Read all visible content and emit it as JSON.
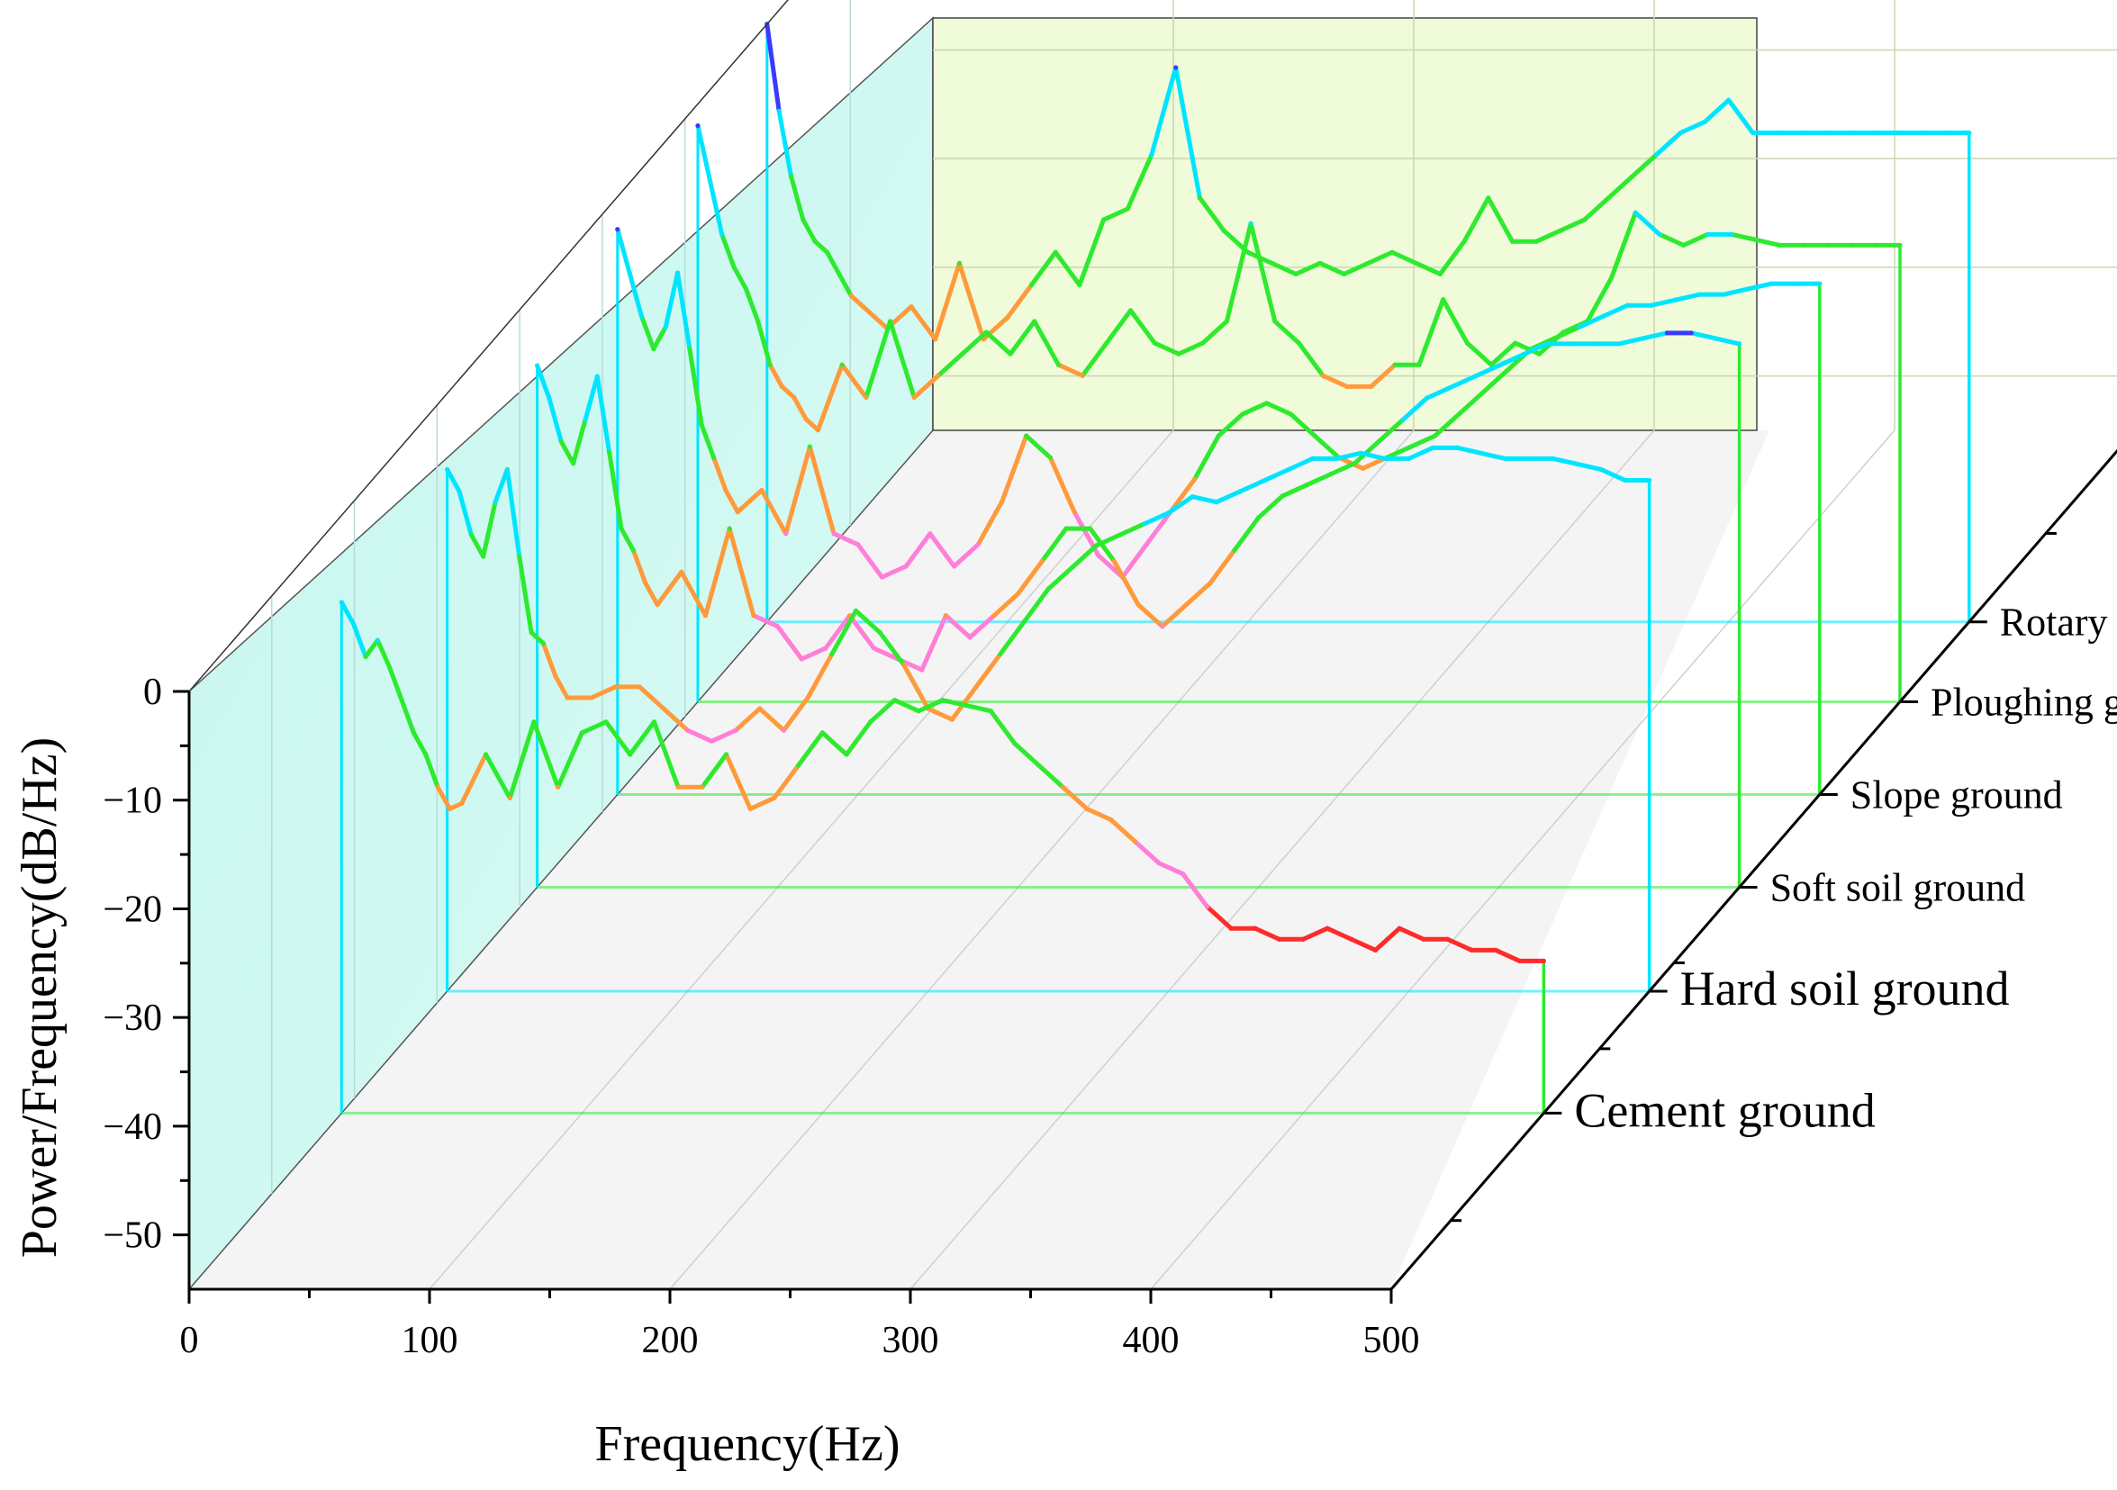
{
  "chart_data": {
    "type": "line",
    "title": "",
    "xlabel": "Frequency(Hz)",
    "ylabel": "Power/Frequency(dB/Hz)",
    "xlim": [
      0,
      500
    ],
    "ylim": [
      -55,
      0
    ],
    "x_ticks": [
      "0",
      "100",
      "200",
      "300",
      "400",
      "500"
    ],
    "y_ticks": [
      "0",
      "−10",
      "−20",
      "−30",
      "−40",
      "−50"
    ],
    "x_tick_values": [
      0,
      100,
      200,
      300,
      400,
      500
    ],
    "y_tick_values": [
      0,
      -10,
      -20,
      -30,
      -40,
      -50
    ],
    "colormap": [
      "#ff2a2a",
      "#ff7ed8",
      "#ff9a3c",
      "#2eea2e",
      "#00e5ff",
      "#3a3aff"
    ],
    "series": [
      {
        "name": "Cement ground",
        "x": [
          0,
          5,
          10,
          15,
          20,
          25,
          30,
          35,
          40,
          45,
          50,
          60,
          70,
          80,
          90,
          100,
          110,
          120,
          130,
          140,
          150,
          160,
          170,
          180,
          190,
          200,
          210,
          220,
          230,
          240,
          250,
          260,
          270,
          280,
          290,
          300,
          310,
          320,
          330,
          340,
          350,
          360,
          370,
          380,
          390,
          400,
          410,
          420,
          430,
          440,
          450,
          460,
          470,
          480,
          490,
          500
        ],
        "values": [
          -8,
          -10,
          -13,
          -11.5,
          -14,
          -17,
          -20,
          -22,
          -25,
          -27,
          -26.5,
          -22,
          -26,
          -19,
          -25,
          -20,
          -19,
          -22,
          -19,
          -25,
          -25,
          -22,
          -27,
          -26,
          -23,
          -20,
          -22,
          -19,
          -17,
          -18,
          -17,
          -17.5,
          -18,
          -21,
          -23,
          -25,
          -27,
          -28,
          -30,
          -32,
          -33,
          -36,
          -38,
          -38,
          -39,
          -39,
          -38,
          -39,
          -40,
          -38,
          -39,
          -39,
          -40,
          -40,
          -41,
          -41
        ]
      },
      {
        "name": "Hard soil ground",
        "x": [
          0,
          5,
          10,
          15,
          20,
          25,
          30,
          35,
          40,
          45,
          50,
          60,
          70,
          80,
          90,
          100,
          110,
          120,
          130,
          140,
          150,
          160,
          170,
          180,
          190,
          200,
          210,
          220,
          230,
          240,
          250,
          260,
          270,
          280,
          290,
          300,
          310,
          320,
          330,
          340,
          350,
          360,
          370,
          380,
          390,
          400,
          410,
          420,
          430,
          440,
          450,
          460,
          470,
          480,
          490,
          500
        ],
        "values": [
          -7,
          -9,
          -13,
          -15,
          -10,
          -7,
          -15,
          -22,
          -23,
          -26,
          -28,
          -28,
          -27,
          -27,
          -29,
          -31,
          -32,
          -31,
          -29,
          -31,
          -28,
          -24,
          -20,
          -22,
          -25,
          -29,
          -30,
          -27,
          -24,
          -21,
          -18,
          -16,
          -14,
          -13,
          -12,
          -11,
          -9.5,
          -10,
          -9,
          -8,
          -7,
          -6,
          -6,
          -5.5,
          -6,
          -6,
          -5,
          -5,
          -5.5,
          -6,
          -6,
          -6,
          -6.5,
          -7,
          -8,
          -8
        ]
      },
      {
        "name": "Soft soil ground",
        "x": [
          0,
          5,
          10,
          15,
          20,
          25,
          30,
          35,
          40,
          45,
          50,
          60,
          70,
          80,
          90,
          100,
          110,
          120,
          130,
          140,
          150,
          160,
          170,
          180,
          190,
          200,
          210,
          220,
          230,
          240,
          250,
          260,
          270,
          280,
          290,
          300,
          310,
          320,
          330,
          340,
          350,
          360,
          370,
          380,
          390,
          400,
          410,
          420,
          430,
          440,
          450,
          460,
          470,
          480,
          490,
          500
        ],
        "values": [
          -7,
          -10,
          -14,
          -16,
          -12,
          -8,
          -15,
          -22,
          -24,
          -27,
          -29,
          -26,
          -30,
          -22,
          -30,
          -31,
          -34,
          -33,
          -30,
          -33,
          -34,
          -35,
          -30,
          -32,
          -30,
          -28,
          -25,
          -22,
          -22,
          -25,
          -29,
          -31,
          -29,
          -27,
          -24,
          -21,
          -19,
          -18,
          -17,
          -16,
          -14,
          -12,
          -10,
          -9,
          -8,
          -7,
          -6,
          -5,
          -5,
          -5,
          -5,
          -4.5,
          -4,
          -4,
          -4.5,
          -5
        ]
      },
      {
        "name": "Slope ground",
        "x": [
          0,
          5,
          10,
          15,
          20,
          25,
          30,
          35,
          40,
          45,
          50,
          60,
          70,
          80,
          90,
          100,
          110,
          120,
          130,
          140,
          150,
          160,
          170,
          180,
          190,
          200,
          210,
          220,
          230,
          240,
          250,
          260,
          270,
          280,
          290,
          300,
          310,
          320,
          330,
          340,
          350,
          360,
          370,
          380,
          390,
          400,
          410,
          420,
          430,
          440,
          450,
          460,
          470,
          480,
          490,
          500
        ],
        "values": [
          -3,
          -7,
          -11,
          -14,
          -12,
          -7,
          -14,
          -21,
          -24,
          -27,
          -29,
          -27,
          -31,
          -23,
          -31,
          -32,
          -35,
          -34,
          -31,
          -34,
          -32,
          -28,
          -22,
          -24,
          -29,
          -33,
          -35,
          -32,
          -29,
          -26,
          -22,
          -20,
          -19,
          -20,
          -22,
          -24,
          -25,
          -24,
          -23,
          -22,
          -20,
          -18,
          -16,
          -14,
          -13,
          -12,
          -11,
          -10,
          -10,
          -9.5,
          -9,
          -9,
          -8.5,
          -8,
          -8,
          -8
        ]
      },
      {
        "name": "Ploughing ground",
        "x": [
          0,
          5,
          10,
          15,
          20,
          25,
          30,
          35,
          40,
          45,
          50,
          60,
          70,
          80,
          90,
          100,
          110,
          120,
          130,
          140,
          150,
          160,
          170,
          180,
          190,
          200,
          210,
          220,
          230,
          240,
          250,
          260,
          270,
          280,
          290,
          300,
          310,
          320,
          330,
          340,
          350,
          360,
          370,
          380,
          390,
          400,
          410,
          420,
          430,
          440,
          450,
          460,
          470,
          480,
          490,
          500
        ],
        "values": [
          -2,
          -7,
          -12,
          -15,
          -17,
          -20,
          -24,
          -26,
          -27,
          -29,
          -30,
          -24,
          -27,
          -20,
          -27,
          -25,
          -23,
          -21,
          -23,
          -20,
          -24,
          -25,
          -22,
          -19,
          -22,
          -23,
          -22,
          -20,
          -11,
          -20,
          -22,
          -25,
          -26,
          -26,
          -24,
          -24,
          -18,
          -22,
          -24,
          -22,
          -23,
          -21,
          -20,
          -16,
          -10,
          -12,
          -13,
          -12,
          -12,
          -12.5,
          -13,
          -13,
          -13,
          -13,
          -13,
          -13
        ]
      },
      {
        "name": "Rotary tillage ground",
        "x": [
          0,
          5,
          10,
          15,
          20,
          25,
          30,
          35,
          40,
          45,
          50,
          60,
          70,
          80,
          90,
          100,
          110,
          120,
          130,
          140,
          150,
          160,
          170,
          180,
          190,
          200,
          210,
          220,
          230,
          240,
          250,
          260,
          270,
          280,
          290,
          300,
          310,
          320,
          330,
          340,
          350,
          360,
          370,
          380,
          390,
          400,
          410,
          420,
          430,
          440,
          450,
          460,
          470,
          480,
          490,
          500
        ],
        "values": [
          0,
          -8,
          -14,
          -18,
          -20,
          -21,
          -23,
          -25,
          -26,
          -27,
          -28,
          -26,
          -29,
          -22,
          -29,
          -27,
          -24,
          -21,
          -24,
          -18,
          -17,
          -12,
          -4,
          -16,
          -19,
          -21,
          -22,
          -23,
          -22,
          -23,
          -22,
          -21,
          -22,
          -23,
          -20,
          -16,
          -20,
          -20,
          -19,
          -18,
          -16,
          -14,
          -12,
          -10,
          -9,
          -7,
          -10,
          -10,
          -10,
          -10,
          -10,
          -10,
          -10,
          -10,
          -10,
          -10
        ]
      }
    ]
  }
}
